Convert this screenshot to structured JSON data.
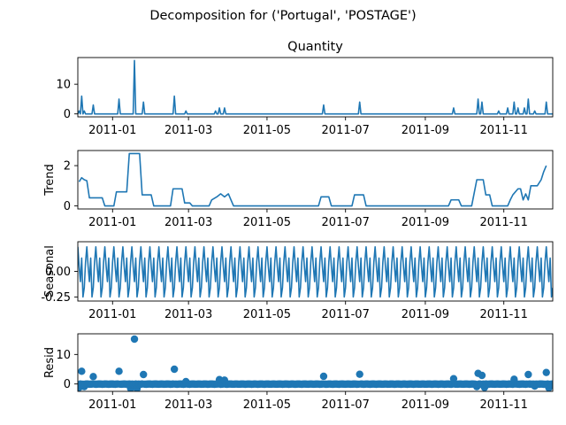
{
  "figure": {
    "suptitle": "Decomposition for ('Portugal', 'POSTAGE')",
    "line_color": "#1f77b4"
  },
  "chart_data": [
    {
      "type": "line",
      "title": "Quantity",
      "ylabel": "",
      "x_tick_labels": [
        "2011-01",
        "2011-03",
        "2011-05",
        "2011-07",
        "2011-09",
        "2011-11"
      ],
      "y_tick_labels": [
        "0",
        "10"
      ],
      "xlim": [
        "2010-12-05",
        "2011-12-09"
      ],
      "ylim": [
        -1,
        19
      ],
      "baseline": 0,
      "spikes": [
        {
          "x": "2010-12-06",
          "y": 1
        },
        {
          "x": "2010-12-08",
          "y": 6
        },
        {
          "x": "2010-12-10",
          "y": 1
        },
        {
          "x": "2010-12-17",
          "y": 3
        },
        {
          "x": "2011-01-06",
          "y": 5
        },
        {
          "x": "2011-01-18",
          "y": 18
        },
        {
          "x": "2011-01-25",
          "y": 4
        },
        {
          "x": "2011-02-18",
          "y": 6
        },
        {
          "x": "2011-02-27",
          "y": 1
        },
        {
          "x": "2011-03-22",
          "y": 1
        },
        {
          "x": "2011-03-25",
          "y": 2
        },
        {
          "x": "2011-03-29",
          "y": 2
        },
        {
          "x": "2011-06-14",
          "y": 3
        },
        {
          "x": "2011-07-12",
          "y": 4
        },
        {
          "x": "2011-09-23",
          "y": 2
        },
        {
          "x": "2011-10-12",
          "y": 5
        },
        {
          "x": "2011-10-15",
          "y": 4
        },
        {
          "x": "2011-10-28",
          "y": 1
        },
        {
          "x": "2011-11-04",
          "y": 2
        },
        {
          "x": "2011-11-09",
          "y": 4
        },
        {
          "x": "2011-11-12",
          "y": 2
        },
        {
          "x": "2011-11-17",
          "y": 2
        },
        {
          "x": "2011-11-20",
          "y": 5
        },
        {
          "x": "2011-11-25",
          "y": 1
        },
        {
          "x": "2011-12-04",
          "y": 4
        }
      ]
    },
    {
      "type": "line",
      "title": "",
      "ylabel": "Trend",
      "x_tick_labels": [
        "2011-01",
        "2011-03",
        "2011-05",
        "2011-07",
        "2011-09",
        "2011-11"
      ],
      "y_tick_labels": [
        "0",
        "2"
      ],
      "xlim": [
        "2010-12-05",
        "2011-12-09"
      ],
      "ylim": [
        -0.15,
        2.75
      ],
      "points": [
        {
          "x": "2010-12-06",
          "y": 1.2
        },
        {
          "x": "2010-12-08",
          "y": 1.4
        },
        {
          "x": "2010-12-10",
          "y": 1.3
        },
        {
          "x": "2010-12-12",
          "y": 1.25
        },
        {
          "x": "2010-12-14",
          "y": 0.4
        },
        {
          "x": "2010-12-24",
          "y": 0.4
        },
        {
          "x": "2010-12-26",
          "y": 0.0
        },
        {
          "x": "2011-01-02",
          "y": 0.0
        },
        {
          "x": "2011-01-04",
          "y": 0.7
        },
        {
          "x": "2011-01-12",
          "y": 0.7
        },
        {
          "x": "2011-01-14",
          "y": 2.6
        },
        {
          "x": "2011-01-22",
          "y": 2.6
        },
        {
          "x": "2011-01-24",
          "y": 0.55
        },
        {
          "x": "2011-01-31",
          "y": 0.55
        },
        {
          "x": "2011-02-02",
          "y": 0.0
        },
        {
          "x": "2011-02-15",
          "y": 0.0
        },
        {
          "x": "2011-02-17",
          "y": 0.85
        },
        {
          "x": "2011-02-24",
          "y": 0.85
        },
        {
          "x": "2011-02-26",
          "y": 0.15
        },
        {
          "x": "2011-03-02",
          "y": 0.15
        },
        {
          "x": "2011-03-04",
          "y": 0.0
        },
        {
          "x": "2011-03-17",
          "y": 0.0
        },
        {
          "x": "2011-03-19",
          "y": 0.3
        },
        {
          "x": "2011-03-23",
          "y": 0.45
        },
        {
          "x": "2011-03-26",
          "y": 0.6
        },
        {
          "x": "2011-03-29",
          "y": 0.45
        },
        {
          "x": "2011-04-01",
          "y": 0.6
        },
        {
          "x": "2011-04-03",
          "y": 0.3
        },
        {
          "x": "2011-04-05",
          "y": 0.0
        },
        {
          "x": "2011-06-10",
          "y": 0.0
        },
        {
          "x": "2011-06-12",
          "y": 0.45
        },
        {
          "x": "2011-06-18",
          "y": 0.45
        },
        {
          "x": "2011-06-20",
          "y": 0.0
        },
        {
          "x": "2011-07-06",
          "y": 0.0
        },
        {
          "x": "2011-07-08",
          "y": 0.55
        },
        {
          "x": "2011-07-15",
          "y": 0.55
        },
        {
          "x": "2011-07-17",
          "y": 0.0
        },
        {
          "x": "2011-09-19",
          "y": 0.0
        },
        {
          "x": "2011-09-21",
          "y": 0.3
        },
        {
          "x": "2011-09-27",
          "y": 0.3
        },
        {
          "x": "2011-09-29",
          "y": 0.0
        },
        {
          "x": "2011-10-07",
          "y": 0.0
        },
        {
          "x": "2011-10-09",
          "y": 0.65
        },
        {
          "x": "2011-10-11",
          "y": 1.3
        },
        {
          "x": "2011-10-16",
          "y": 1.3
        },
        {
          "x": "2011-10-18",
          "y": 0.55
        },
        {
          "x": "2011-10-21",
          "y": 0.55
        },
        {
          "x": "2011-10-23",
          "y": 0.0
        },
        {
          "x": "2011-11-04",
          "y": 0.0
        },
        {
          "x": "2011-11-06",
          "y": 0.3
        },
        {
          "x": "2011-11-08",
          "y": 0.55
        },
        {
          "x": "2011-11-12",
          "y": 0.85
        },
        {
          "x": "2011-11-14",
          "y": 0.85
        },
        {
          "x": "2011-11-16",
          "y": 0.3
        },
        {
          "x": "2011-11-18",
          "y": 0.6
        },
        {
          "x": "2011-11-20",
          "y": 0.3
        },
        {
          "x": "2011-11-22",
          "y": 1.0
        },
        {
          "x": "2011-11-27",
          "y": 1.0
        },
        {
          "x": "2011-11-30",
          "y": 1.3
        },
        {
          "x": "2011-12-02",
          "y": 1.7
        },
        {
          "x": "2011-12-04",
          "y": 2.0
        }
      ]
    },
    {
      "type": "line",
      "title": "",
      "ylabel": "Seasonal",
      "x_tick_labels": [
        "2011-01",
        "2011-03",
        "2011-05",
        "2011-07",
        "2011-09",
        "2011-11"
      ],
      "y_tick_labels": [
        "0.00",
        "-0.25"
      ],
      "xlim": [
        "2010-12-05",
        "2011-12-09"
      ],
      "ylim": [
        -0.29,
        0.29
      ],
      "period_days": 7,
      "start": "2010-12-05",
      "end": "2011-12-09",
      "pattern": [
        0.24,
        0.05,
        -0.1,
        0.13,
        -0.25,
        -0.16,
        0.09
      ]
    },
    {
      "type": "scatter",
      "title": "",
      "ylabel": "Resid",
      "x_tick_labels": [
        "2011-01",
        "2011-03",
        "2011-05",
        "2011-07",
        "2011-09",
        "2011-11"
      ],
      "y_tick_labels": [
        "0",
        "10"
      ],
      "xlim": [
        "2010-12-05",
        "2011-12-09"
      ],
      "ylim": [
        -2.5,
        17
      ],
      "line_y": 0,
      "start": "2010-12-06",
      "end": "2011-12-09",
      "outliers": [
        {
          "x": "2010-12-06",
          "y": -1.2
        },
        {
          "x": "2010-12-08",
          "y": 4.3
        },
        {
          "x": "2010-12-10",
          "y": -0.9
        },
        {
          "x": "2010-12-17",
          "y": 2.5
        },
        {
          "x": "2011-01-06",
          "y": 4.3
        },
        {
          "x": "2011-01-15",
          "y": -1.5
        },
        {
          "x": "2011-01-18",
          "y": 15.2
        },
        {
          "x": "2011-01-20",
          "y": -1.6
        },
        {
          "x": "2011-01-25",
          "y": 3.2
        },
        {
          "x": "2011-02-18",
          "y": 5.0
        },
        {
          "x": "2011-02-27",
          "y": 0.8
        },
        {
          "x": "2011-03-25",
          "y": 1.5
        },
        {
          "x": "2011-03-29",
          "y": 1.3
        },
        {
          "x": "2011-06-14",
          "y": 2.6
        },
        {
          "x": "2011-07-12",
          "y": 3.3
        },
        {
          "x": "2011-09-23",
          "y": 1.8
        },
        {
          "x": "2011-10-11",
          "y": -0.9
        },
        {
          "x": "2011-10-12",
          "y": 3.6
        },
        {
          "x": "2011-10-15",
          "y": 2.9
        },
        {
          "x": "2011-10-17",
          "y": -1.2
        },
        {
          "x": "2011-11-09",
          "y": 1.6
        },
        {
          "x": "2011-11-20",
          "y": 3.2
        },
        {
          "x": "2011-11-25",
          "y": -0.7
        },
        {
          "x": "2011-12-04",
          "y": 3.9
        },
        {
          "x": "2011-12-06",
          "y": -1.3
        }
      ]
    }
  ]
}
